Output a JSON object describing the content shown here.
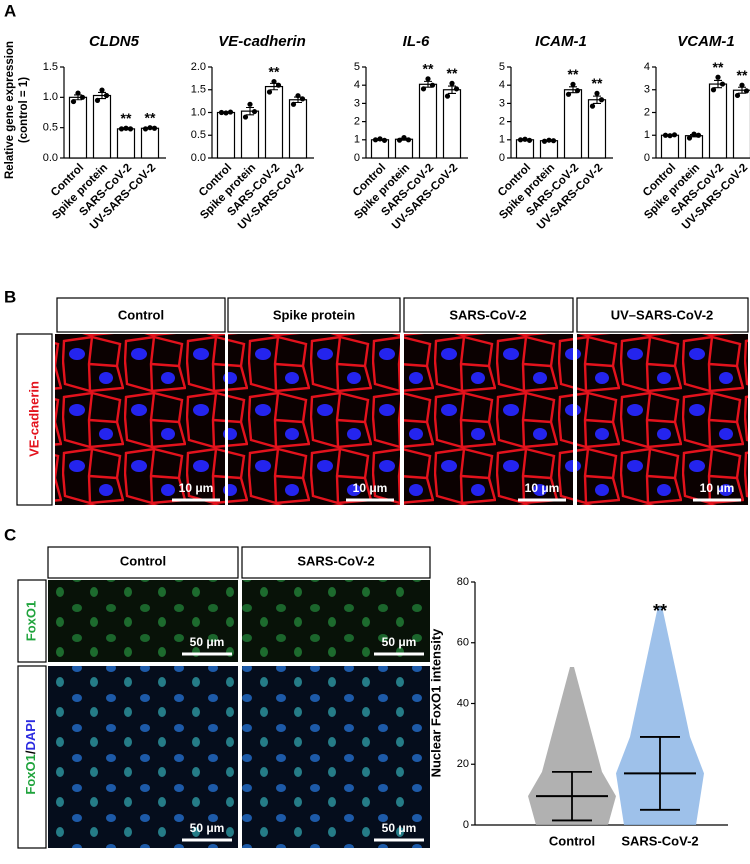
{
  "panel_labels": [
    "A",
    "B",
    "C"
  ],
  "images_b": {
    "headers": [
      "Control",
      "Spike protein",
      "SARS-CoV-2",
      "UV–SARS-CoV-2"
    ],
    "stain": "VE-cadherin",
    "scale_bar": "10 μm"
  },
  "images_c": {
    "headers": [
      "Control",
      "SARS-CoV-2"
    ],
    "stain": "FoxO1",
    "merge": [
      "FoxO1",
      "/",
      "DAPI"
    ],
    "scale_bar": "50 μm"
  },
  "chart_data": [
    {
      "type": "bar",
      "title": "CLDN5",
      "ylabel": [
        "Relative gene expression",
        "(control = 1)"
      ],
      "categories": [
        "Control",
        "Spike protein",
        "SARS-CoV-2",
        "UV-SARS-CoV-2"
      ],
      "values": [
        1.0,
        1.03,
        0.48,
        0.49
      ],
      "errors": [
        0.04,
        0.05,
        0.01,
        0.01
      ],
      "points": [
        [
          0.93,
          1.0,
          1.07
        ],
        [
          0.95,
          1.03,
          1.12
        ],
        [
          0.48,
          0.48,
          0.49
        ],
        [
          0.48,
          0.49,
          0.5
        ]
      ],
      "annotations": [
        null,
        null,
        "**",
        "**"
      ],
      "color": "#ffffff",
      "edgecolor": "#000000",
      "ylim": [
        0,
        1.5
      ],
      "yticks": [
        {
          "value": 0,
          "label": "0.0"
        },
        0.5,
        {
          "value": 1,
          "label": "1.0"
        },
        1.5
      ]
    },
    {
      "type": "bar",
      "title": "VE-cadherin",
      "categories": [
        "Control",
        "Spike protein",
        "SARS-CoV-2",
        "UV-SARS-CoV-2"
      ],
      "values": [
        1.0,
        1.03,
        1.57,
        1.28
      ],
      "errors": [
        0.01,
        0.08,
        0.07,
        0.06
      ],
      "points": [
        [
          1.0,
          1.01,
          0.99
        ],
        [
          0.9,
          1.02,
          1.18
        ],
        [
          1.45,
          1.6,
          1.68
        ],
        [
          1.18,
          1.3,
          1.37
        ]
      ],
      "annotations": [
        null,
        null,
        "**",
        null
      ],
      "color": "#ffffff",
      "edgecolor": "#000000",
      "ylim": [
        0,
        2
      ],
      "yticks": [
        {
          "value": 0,
          "label": "0.0"
        },
        0.5,
        {
          "value": 1,
          "label": "1.0"
        },
        1.5,
        {
          "value": 2,
          "label": "2.0"
        }
      ]
    },
    {
      "type": "bar",
      "title": "IL-6",
      "categories": [
        "Control",
        "Spike protein",
        "SARS-CoV-2",
        "UV-SARS-CoV-2"
      ],
      "values": [
        1.0,
        1.03,
        4.05,
        3.75
      ],
      "errors": [
        0.03,
        0.05,
        0.16,
        0.2
      ],
      "points": [
        [
          1.0,
          0.97,
          1.05
        ],
        [
          0.98,
          1.0,
          1.12
        ],
        [
          3.8,
          4.0,
          4.35
        ],
        [
          3.4,
          3.8,
          4.1
        ]
      ],
      "annotations": [
        null,
        null,
        "**",
        "**"
      ],
      "color": "#ffffff",
      "edgecolor": "#000000",
      "ylim": [
        0,
        5
      ],
      "yticks": [
        0,
        1,
        2,
        3,
        4,
        5
      ]
    },
    {
      "type": "bar",
      "title": "ICAM-1",
      "categories": [
        "Control",
        "Spike protein",
        "SARS-CoV-2",
        "UV-SARS-CoV-2"
      ],
      "values": [
        1.0,
        0.95,
        3.75,
        3.2
      ],
      "errors": [
        0.02,
        0.02,
        0.16,
        0.2
      ],
      "points": [
        [
          1.0,
          0.97,
          1.03
        ],
        [
          0.92,
          0.95,
          0.98
        ],
        [
          3.5,
          3.7,
          4.05
        ],
        [
          2.85,
          3.2,
          3.55
        ]
      ],
      "annotations": [
        null,
        null,
        "**",
        "**"
      ],
      "color": "#ffffff",
      "edgecolor": "#000000",
      "ylim": [
        0,
        5
      ],
      "yticks": [
        0,
        1,
        2,
        3,
        4,
        5
      ]
    },
    {
      "type": "bar",
      "title": "VCAM-1",
      "categories": [
        "Control",
        "Spike protein",
        "SARS-CoV-2",
        "UV-SARS-CoV-2"
      ],
      "values": [
        1.0,
        0.98,
        3.25,
        2.98
      ],
      "errors": [
        0.02,
        0.05,
        0.16,
        0.13
      ],
      "points": [
        [
          1.0,
          1.02,
          0.98
        ],
        [
          0.88,
          1.0,
          1.05
        ],
        [
          3.0,
          3.25,
          3.55
        ],
        [
          2.75,
          2.95,
          3.2
        ]
      ],
      "annotations": [
        null,
        null,
        "**",
        "**"
      ],
      "color": "#ffffff",
      "edgecolor": "#000000",
      "ylim": [
        0,
        4
      ],
      "yticks": [
        0,
        1,
        2,
        3,
        4
      ]
    },
    {
      "type": "dot",
      "ylabel": "Nuclear FoxO1 intensity",
      "categories": [
        "Control",
        "SARS-CoV-2"
      ],
      "means": [
        9.5,
        17
      ],
      "sd": [
        8,
        12
      ],
      "min": [
        0,
        0
      ],
      "max": [
        52,
        72
      ],
      "colors": [
        "#a3a3a3",
        "#8db6e6"
      ],
      "annotations": [
        null,
        "**"
      ],
      "ylim": [
        0,
        80
      ],
      "yticks": [
        0,
        20,
        40,
        60,
        80
      ]
    }
  ]
}
